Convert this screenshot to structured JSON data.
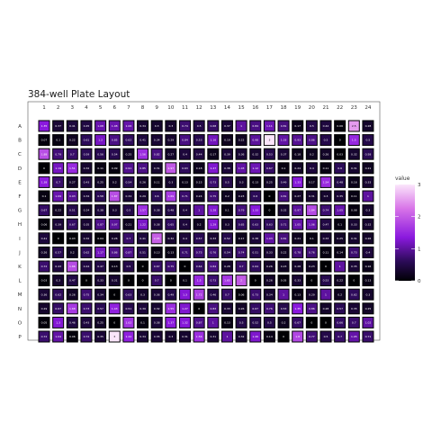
{
  "chart_data": {
    "type": "heatmap",
    "title": "384-well Plate Layout",
    "rows": [
      "A",
      "B",
      "C",
      "D",
      "E",
      "F",
      "G",
      "H",
      "I",
      "J",
      "K",
      "L",
      "M",
      "N",
      "O",
      "P"
    ],
    "columns": [
      "1",
      "2",
      "3",
      "4",
      "5",
      "6",
      "7",
      "8",
      "9",
      "10",
      "11",
      "12",
      "13",
      "14",
      "15",
      "16",
      "17",
      "18",
      "19",
      "20",
      "21",
      "22",
      "23",
      "24"
    ],
    "values": [
      [
        1.35,
        0.37,
        0.41,
        0.45,
        1.08,
        1.08,
        1.06,
        0.34,
        0.3,
        0.3,
        0.74,
        0.5,
        0.68,
        0.37,
        1.0,
        0.84,
        1.11,
        0.81,
        0.17,
        0.5,
        0.42,
        0.06,
        2.5,
        0.28
      ],
      [
        0.07,
        0.1,
        0.22,
        0.61,
        1.2,
        0.85,
        0.62,
        0.41,
        0.34,
        0.29,
        0.84,
        0.53,
        1.16,
        0.19,
        0.22,
        0.98,
        3.0,
        1.03,
        0.93,
        0.86,
        0.5,
        0.0,
        1.5,
        0.5
      ],
      [
        1.88,
        0.79,
        0.7,
        0.59,
        0.56,
        0.54,
        0.25,
        1.56,
        0.82,
        0.27,
        0.4,
        0.44,
        0.17,
        0.39,
        0.36,
        0.32,
        0.53,
        0.37,
        0.18,
        0.2,
        0.26,
        0.03,
        0.32,
        0.58
      ],
      [
        0.0,
        1.19,
        1.51,
        0.32,
        0.11,
        0.09,
        0.91,
        0.85,
        0.31,
        1.97,
        0.63,
        0.18,
        1.27,
        0.38,
        1.03,
        1.12,
        0.67,
        0.1,
        0.24,
        0.4,
        0.11,
        0.6,
        0.31,
        0.21
      ],
      [
        1.38,
        0.7,
        0.27,
        0.43,
        0.25,
        0.2,
        0.54,
        0.26,
        0.11,
        0.3,
        0.13,
        0.15,
        0.73,
        0.5,
        0.3,
        0.13,
        0.25,
        0.49,
        1.33,
        0.17,
        1.54,
        0.48,
        0.16,
        0.33
      ],
      [
        0.1,
        1.09,
        0.93,
        0.34,
        0.58,
        1.87,
        0.34,
        0.29,
        0.6,
        1.69,
        0.71,
        0.24,
        0.75,
        0.2,
        0.23,
        0.6,
        0.0,
        0.81,
        0.27,
        0.31,
        0.3,
        0.35,
        0.11,
        1.0
      ],
      [
        0.67,
        0.22,
        0.51,
        0.24,
        0.38,
        0.3,
        0.5,
        1.57,
        0.38,
        0.48,
        0.4,
        1.0,
        1.28,
        0.1,
        0.79,
        1.33,
        0.0,
        0.32,
        0.97,
        1.84,
        0.74,
        1.05,
        0.08,
        0.3
      ],
      [
        0.06,
        0.39,
        0.67,
        0.35,
        0.87,
        0.97,
        0.21,
        1.22,
        0.38,
        0.65,
        0.4,
        0.2,
        1.29,
        0.3,
        0.65,
        0.63,
        0.63,
        0.71,
        1.05,
        1.06,
        0.47,
        0.1,
        0.33,
        0.32
      ],
      [
        0.41,
        0.0,
        0.03,
        0.32,
        0.04,
        0.26,
        0.7,
        0.41,
        2.05,
        0.32,
        0.4,
        0.57,
        0.33,
        0.52,
        0.17,
        0.38,
        1.03,
        0.81,
        0.21,
        0.1,
        0.33,
        0.25,
        0.31,
        0.26
      ],
      [
        0.26,
        0.57,
        0.2,
        0.62,
        1.17,
        0.86,
        0.87,
        0.51,
        0.13,
        0.13,
        0.71,
        0.75,
        0.76,
        0.54,
        0.74,
        0.51,
        0.33,
        0.22,
        0.78,
        0.76,
        0.11,
        0.14,
        0.73,
        0.4
      ],
      [
        0.72,
        0.43,
        1.86,
        0.44,
        0.47,
        0.13,
        0.5,
        0.0,
        0.67,
        0.75,
        0.0,
        0.64,
        0.84,
        0.28,
        0.7,
        0.64,
        0.26,
        0.23,
        0.28,
        0.23,
        0.0,
        1.0,
        0.35,
        0.16
      ],
      [
        0.03,
        0.3,
        0.47,
        0.0,
        0.33,
        0.31,
        0.0,
        0.0,
        0.7,
        0.0,
        0.1,
        1.5,
        0.73,
        1.65,
        2.0,
        0.0,
        0.26,
        0.05,
        0.33,
        0.0,
        0.53,
        0.22,
        0.0,
        0.13
      ],
      [
        0.36,
        0.62,
        0.26,
        0.75,
        0.34,
        0.0,
        0.63,
        0.3,
        0.36,
        0.49,
        1.3,
        1.72,
        0.46,
        0.7,
        0.06,
        0.73,
        0.34,
        1.0,
        0.13,
        0.29,
        1.0,
        0.2,
        0.62,
        0.3
      ],
      [
        0.29,
        0.67,
        1.68,
        0.73,
        0.57,
        1.43,
        0.51,
        0.39,
        0.32,
        1.55,
        1.27,
        0.0,
        0.83,
        0.33,
        0.26,
        0.67,
        0.76,
        0.53,
        1.35,
        0.86,
        0.28,
        0.57,
        0.35,
        0.25
      ],
      [
        0.05,
        1.3,
        0.46,
        0.43,
        0.25,
        0.0,
        1.62,
        0.1,
        0.38,
        1.37,
        1.32,
        0.87,
        1.0,
        0.13,
        0.5,
        0.52,
        0.5,
        0.2,
        0.67,
        0.0,
        0.0,
        0.66,
        0.7,
        1.02
      ],
      [
        0.72,
        1.04,
        0.06,
        0.72,
        0.35,
        3.0,
        1.42,
        0.34,
        0.35,
        0.3,
        0.31,
        1.56,
        0.31,
        1.0,
        0.32,
        1.26,
        0.14,
        0.0,
        1.8,
        0.77,
        0.5,
        0.7,
        1.05,
        0.71
      ]
    ],
    "colorbar": {
      "title": "value",
      "range": [
        0,
        3
      ],
      "ticks": [
        0,
        1,
        2,
        3
      ],
      "position": "right"
    },
    "colors": {
      "low": "#000004",
      "mid": "#8a19de",
      "high": "#f7c0f6"
    }
  }
}
